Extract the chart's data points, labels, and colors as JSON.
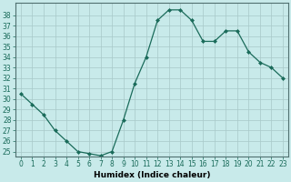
{
  "x": [
    0,
    1,
    2,
    3,
    4,
    5,
    6,
    7,
    8,
    9,
    10,
    11,
    12,
    13,
    14,
    15,
    16,
    17,
    18,
    19,
    20,
    21,
    22,
    23
  ],
  "y": [
    30.5,
    29.5,
    28.5,
    27.0,
    26.0,
    25.0,
    24.8,
    24.6,
    25.0,
    28.0,
    31.5,
    34.0,
    37.5,
    38.5,
    38.5,
    37.5,
    35.5,
    35.5,
    36.5,
    36.5,
    34.5,
    33.5,
    33.0,
    32.0
  ],
  "line_color": "#1a6b5a",
  "marker": "D",
  "markersize": 2.0,
  "linewidth": 0.9,
  "xlabel": "Humidex (Indice chaleur)",
  "xlabel_fontsize": 6.5,
  "tick_fontsize": 5.5,
  "ylim_min": 24.5,
  "ylim_max": 39.2,
  "xlim_min": -0.5,
  "xlim_max": 23.5,
  "yticks": [
    25,
    26,
    27,
    28,
    29,
    30,
    31,
    32,
    33,
    34,
    35,
    36,
    37,
    38
  ],
  "xticks": [
    0,
    1,
    2,
    3,
    4,
    5,
    6,
    7,
    8,
    9,
    10,
    11,
    12,
    13,
    14,
    15,
    16,
    17,
    18,
    19,
    20,
    21,
    22,
    23
  ],
  "bg_color": "#c8eaea",
  "grid_color": "#a8c8c8",
  "border_color": "#507070"
}
